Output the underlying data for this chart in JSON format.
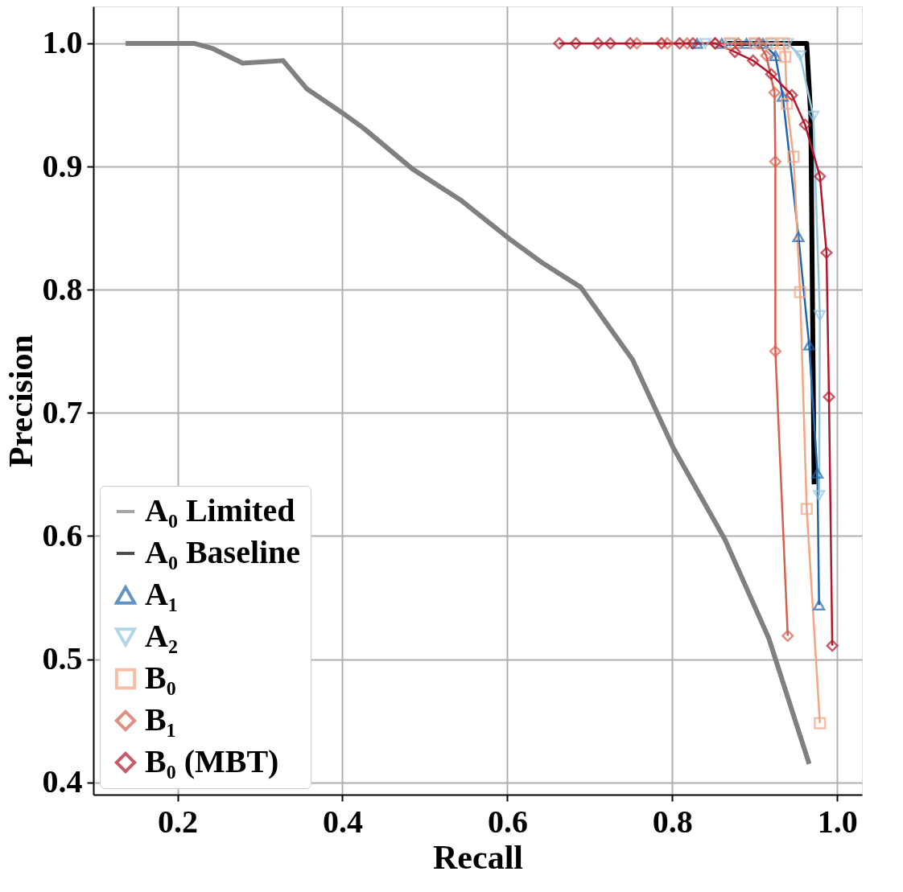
{
  "chart_data": {
    "type": "line",
    "xlabel": "Recall",
    "ylabel": "Precision",
    "xlim": [
      0.098,
      1.03
    ],
    "ylim": [
      0.39,
      1.03
    ],
    "xticks": [
      0.2,
      0.4,
      0.6,
      0.8,
      {
        "value": 1,
        "label": "1.0"
      }
    ],
    "yticks": [
      0.4,
      0.5,
      0.6,
      0.7,
      0.8,
      0.9,
      {
        "value": 1,
        "label": "1.0"
      }
    ],
    "grid": true,
    "legend": "bottom left",
    "line_style": "solid",
    "series": [
      {
        "name": "A₀ Limited",
        "color": "#808080",
        "marker": "none",
        "x": [
          0.137,
          0.22,
          0.242,
          0.279,
          0.328,
          0.357,
          0.399,
          0.426,
          0.485,
          0.543,
          0.603,
          0.642,
          0.689,
          0.752,
          0.801,
          0.864,
          0.917,
          0.966
        ],
        "values": [
          1.0,
          1.0,
          0.996,
          0.984,
          0.986,
          0.963,
          0.944,
          0.931,
          0.898,
          0.873,
          0.841,
          0.822,
          0.802,
          0.743,
          0.672,
          0.597,
          0.517,
          0.415
        ]
      },
      {
        "name": "A₀ Baseline",
        "color": "#000000",
        "marker": "none",
        "x": [
          0.866,
          0.963,
          0.968,
          0.972
        ],
        "values": [
          1.0,
          1.0,
          0.94,
          0.642
        ]
      },
      {
        "name": "A₁",
        "color": "#2166ac",
        "marker": "triangle",
        "x": [
          0.83,
          0.86,
          0.89,
          0.91,
          0.925,
          0.934,
          0.953,
          0.966,
          0.976,
          0.978
        ],
        "values": [
          1.0,
          1.0,
          1.0,
          1.0,
          0.99,
          0.957,
          0.843,
          0.755,
          0.651,
          0.544
        ]
      },
      {
        "name": "A₂",
        "color": "#92c5de",
        "marker": "triangle-down",
        "x": [
          0.84,
          0.87,
          0.9,
          0.92,
          0.94,
          0.955,
          0.971,
          0.979,
          0.978
        ],
        "values": [
          1.0,
          1.0,
          1.0,
          1.0,
          1.0,
          0.99,
          0.941,
          0.779,
          0.633
        ]
      },
      {
        "name": "B₀",
        "color": "#f4a582",
        "marker": "square",
        "x": [
          0.87,
          0.9,
          0.92,
          0.935,
          0.937,
          0.939,
          0.947,
          0.955,
          0.963,
          0.979
        ],
        "values": [
          1.0,
          1.0,
          1.0,
          1.0,
          0.989,
          0.951,
          0.908,
          0.798,
          0.622,
          0.448
        ]
      },
      {
        "name": "B₁",
        "color": "#d6604d",
        "marker": "diamond",
        "x": [
          0.757,
          0.794,
          0.818,
          0.852,
          0.88,
          0.905,
          0.914,
          0.924,
          0.925,
          0.925,
          0.94
        ],
        "values": [
          1.0,
          1.0,
          1.0,
          1.0,
          1.0,
          1.0,
          0.99,
          0.96,
          0.904,
          0.75,
          0.519
        ]
      },
      {
        "name": "B₀ (MBT)",
        "color": "#b2182b",
        "marker": "diamond",
        "x": [
          0.663,
          0.683,
          0.71,
          0.725,
          0.749,
          0.787,
          0.809,
          0.825,
          0.852,
          0.876,
          0.898,
          0.92,
          0.945,
          0.961,
          0.979,
          0.987,
          0.99,
          0.994
        ],
        "values": [
          1.0,
          1.0,
          1.0,
          1.0,
          1.0,
          1.0,
          1.0,
          1.0,
          1.0,
          0.993,
          0.986,
          0.975,
          0.958,
          0.934,
          0.892,
          0.83,
          0.713,
          0.511
        ]
      }
    ]
  }
}
